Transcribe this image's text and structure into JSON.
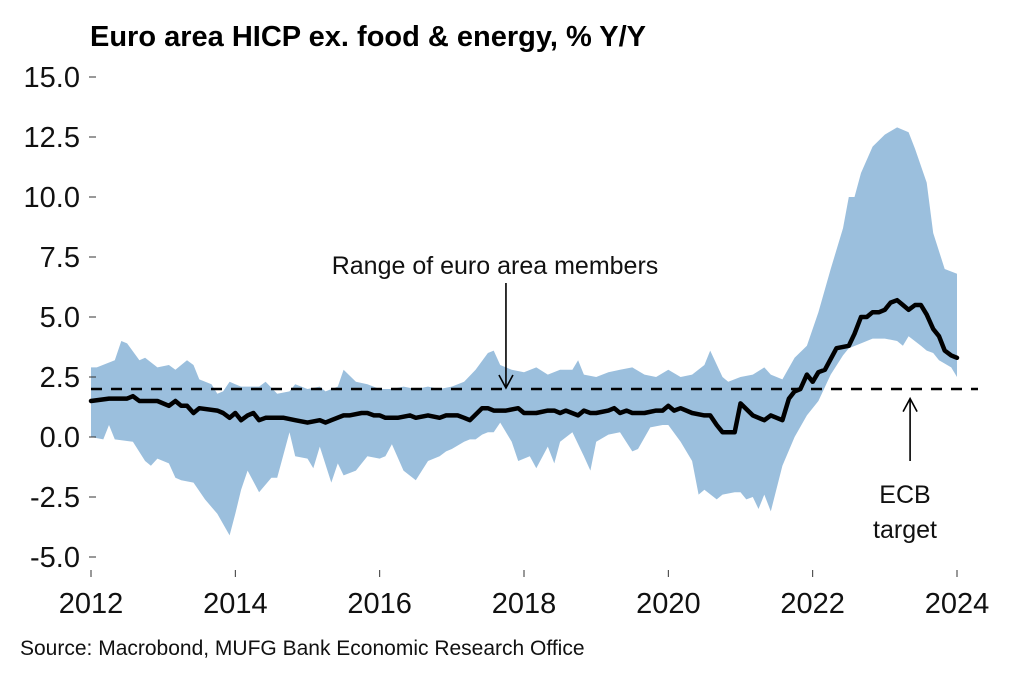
{
  "chart_data": {
    "type": "area",
    "title": "Euro area HICP ex. food & energy, % Y/Y",
    "xlabel": "",
    "ylabel": "",
    "source": "Source: Macrobond, MUFG Bank Economic Research Office",
    "xlim": [
      2012,
      2024
    ],
    "ylim": [
      -5.0,
      15.0
    ],
    "x_ticks": [
      2012,
      2014,
      2016,
      2018,
      2020,
      2022,
      2024
    ],
    "x_tick_labels": [
      "2012",
      "2014",
      "2016",
      "2018",
      "2020",
      "2022",
      "2024"
    ],
    "y_ticks": [
      15.0,
      12.5,
      10.0,
      7.5,
      5.0,
      2.5,
      0.0,
      -2.5,
      -5.0
    ],
    "y_tick_labels": [
      "15.0",
      "12.5",
      "10.0",
      "7.5",
      "5.0",
      "2.5",
      "0.0",
      "-2.5",
      "-5.0"
    ],
    "grid": false,
    "legend": "none",
    "colors": {
      "band": "#9bbfdd",
      "line": "#000000",
      "target": "#000000"
    },
    "reference_line": {
      "name": "ECB target",
      "value": 2.0,
      "style": "dashed"
    },
    "annotations": [
      {
        "text": "Range of euro area members",
        "arrow_to_x": 2017.75,
        "arrow_to_y": 2.0
      },
      {
        "text_lines": [
          "ECB",
          "target"
        ],
        "arrow_to_x": 2023.35,
        "arrow_to_y": 1.6
      }
    ],
    "series": [
      {
        "name": "Euro area HICP ex. food & energy",
        "type": "line",
        "x": [
          2012.0,
          2012.25,
          2012.5,
          2012.58,
          2012.67,
          2012.92,
          2013.08,
          2013.17,
          2013.25,
          2013.33,
          2013.42,
          2013.5,
          2013.75,
          2013.83,
          2013.92,
          2014.0,
          2014.08,
          2014.17,
          2014.25,
          2014.33,
          2014.42,
          2014.5,
          2014.67,
          2014.83,
          2015.0,
          2015.17,
          2015.25,
          2015.33,
          2015.5,
          2015.58,
          2015.75,
          2015.83,
          2015.92,
          2016.0,
          2016.08,
          2016.25,
          2016.42,
          2016.5,
          2016.67,
          2016.83,
          2016.92,
          2017.08,
          2017.17,
          2017.25,
          2017.42,
          2017.5,
          2017.58,
          2017.75,
          2017.92,
          2018.0,
          2018.17,
          2018.33,
          2018.42,
          2018.5,
          2018.58,
          2018.75,
          2018.83,
          2018.92,
          2019.0,
          2019.17,
          2019.25,
          2019.33,
          2019.42,
          2019.5,
          2019.58,
          2019.67,
          2019.83,
          2019.92,
          2020.0,
          2020.08,
          2020.17,
          2020.33,
          2020.5,
          2020.58,
          2020.67,
          2020.75,
          2020.92,
          2021.0,
          2021.17,
          2021.33,
          2021.42,
          2021.5,
          2021.58,
          2021.67,
          2021.75,
          2021.83,
          2021.92,
          2022.0,
          2022.08,
          2022.17,
          2022.33,
          2022.5,
          2022.58,
          2022.67,
          2022.75,
          2022.83,
          2022.92,
          2023.0,
          2023.08,
          2023.17,
          2023.25,
          2023.33,
          2023.42,
          2023.5,
          2023.58,
          2023.67,
          2023.75,
          2023.83,
          2023.92,
          2024.0
        ],
        "values": [
          1.5,
          1.6,
          1.6,
          1.7,
          1.5,
          1.5,
          1.3,
          1.5,
          1.3,
          1.3,
          1.0,
          1.2,
          1.1,
          1.0,
          0.8,
          1.0,
          0.7,
          0.9,
          1.0,
          0.7,
          0.8,
          0.8,
          0.8,
          0.7,
          0.6,
          0.7,
          0.6,
          0.7,
          0.9,
          0.9,
          1.0,
          1.0,
          0.9,
          0.9,
          0.8,
          0.8,
          0.9,
          0.8,
          0.9,
          0.8,
          0.9,
          0.9,
          0.8,
          0.7,
          1.2,
          1.2,
          1.1,
          1.1,
          1.2,
          1.0,
          1.0,
          1.1,
          1.1,
          1.0,
          1.1,
          0.9,
          1.1,
          1.0,
          1.0,
          1.1,
          1.2,
          1.0,
          1.1,
          1.0,
          1.0,
          1.0,
          1.1,
          1.1,
          1.3,
          1.1,
          1.2,
          1.0,
          0.9,
          0.9,
          0.5,
          0.2,
          0.2,
          1.4,
          0.9,
          0.7,
          0.9,
          0.8,
          0.7,
          1.6,
          1.9,
          2.0,
          2.6,
          2.3,
          2.7,
          2.8,
          3.7,
          3.8,
          4.3,
          5.0,
          5.0,
          5.2,
          5.2,
          5.3,
          5.6,
          5.7,
          5.5,
          5.3,
          5.5,
          5.5,
          5.1,
          4.5,
          4.2,
          3.6,
          3.4,
          3.3
        ]
      },
      {
        "name": "Range of euro area members (max)",
        "type": "band_upper",
        "x": [
          2012.0,
          2012.08,
          2012.33,
          2012.42,
          2012.5,
          2012.67,
          2012.75,
          2012.92,
          2013.08,
          2013.17,
          2013.33,
          2013.42,
          2013.5,
          2013.67,
          2013.75,
          2013.83,
          2013.92,
          2014.0,
          2014.08,
          2014.17,
          2014.33,
          2014.42,
          2014.58,
          2014.75,
          2014.83,
          2015.0,
          2015.17,
          2015.25,
          2015.42,
          2015.5,
          2015.67,
          2015.83,
          2016.0,
          2016.17,
          2016.33,
          2016.5,
          2016.67,
          2016.83,
          2017.0,
          2017.17,
          2017.33,
          2017.5,
          2017.58,
          2017.67,
          2017.83,
          2018.0,
          2018.17,
          2018.33,
          2018.5,
          2018.67,
          2018.75,
          2018.83,
          2019.0,
          2019.17,
          2019.33,
          2019.5,
          2019.67,
          2019.83,
          2020.0,
          2020.17,
          2020.33,
          2020.5,
          2020.58,
          2020.75,
          2020.83,
          2021.0,
          2021.17,
          2021.33,
          2021.42,
          2021.58,
          2021.75,
          2021.92,
          2022.08,
          2022.25,
          2022.42,
          2022.5,
          2022.58,
          2022.67,
          2022.83,
          2023.0,
          2023.17,
          2023.33,
          2023.42,
          2023.58,
          2023.67,
          2023.83,
          2024.0,
          2024.0
        ],
        "values": [
          2.9,
          2.9,
          3.2,
          4.0,
          3.9,
          3.2,
          3.3,
          2.9,
          3.0,
          2.8,
          3.2,
          3.0,
          2.4,
          2.2,
          1.8,
          1.9,
          2.3,
          2.2,
          2.1,
          2.1,
          2.1,
          2.3,
          1.8,
          1.9,
          2.2,
          2.0,
          2.1,
          1.9,
          2.1,
          2.8,
          2.3,
          2.2,
          2.0,
          2.0,
          2.1,
          2.0,
          2.1,
          2.0,
          2.1,
          2.3,
          2.8,
          3.5,
          3.6,
          3.0,
          2.8,
          2.7,
          2.9,
          2.6,
          2.8,
          2.8,
          3.2,
          2.6,
          2.5,
          2.7,
          2.8,
          2.9,
          2.6,
          2.5,
          2.8,
          2.5,
          2.6,
          3.0,
          3.6,
          2.5,
          2.3,
          2.5,
          2.6,
          2.9,
          2.6,
          2.4,
          3.3,
          3.8,
          5.2,
          7.0,
          8.7,
          10.0,
          10.0,
          11.0,
          12.1,
          12.6,
          12.9,
          12.7,
          12.0,
          10.6,
          8.5,
          7.0,
          6.8,
          5.2
        ]
      },
      {
        "name": "Range of euro area members (min)",
        "type": "band_lower",
        "x": [
          2012.0,
          2012.17,
          2012.25,
          2012.33,
          2012.58,
          2012.75,
          2012.83,
          2012.92,
          2013.08,
          2013.17,
          2013.25,
          2013.42,
          2013.58,
          2013.75,
          2013.92,
          2014.0,
          2014.08,
          2014.17,
          2014.33,
          2014.5,
          2014.58,
          2014.75,
          2014.83,
          2015.0,
          2015.08,
          2015.17,
          2015.33,
          2015.42,
          2015.5,
          2015.67,
          2015.83,
          2016.0,
          2016.08,
          2016.17,
          2016.33,
          2016.5,
          2016.67,
          2016.83,
          2016.92,
          2017.0,
          2017.17,
          2017.25,
          2017.33,
          2017.42,
          2017.5,
          2017.58,
          2017.67,
          2017.83,
          2017.92,
          2018.08,
          2018.17,
          2018.33,
          2018.42,
          2018.5,
          2018.67,
          2018.83,
          2018.92,
          2019.0,
          2019.17,
          2019.33,
          2019.5,
          2019.58,
          2019.75,
          2019.92,
          2020.0,
          2020.17,
          2020.33,
          2020.42,
          2020.5,
          2020.67,
          2020.75,
          2020.92,
          2021.0,
          2021.08,
          2021.17,
          2021.25,
          2021.33,
          2021.42,
          2021.58,
          2021.75,
          2021.92,
          2022.08,
          2022.25,
          2022.42,
          2022.5,
          2022.67,
          2022.83,
          2023.0,
          2023.17,
          2023.25,
          2023.33,
          2023.5,
          2023.58,
          2023.67,
          2023.75,
          2023.92,
          2024.0
        ],
        "values": [
          0.0,
          -0.1,
          0.5,
          -0.1,
          -0.2,
          -1.0,
          -1.2,
          -0.9,
          -1.1,
          -1.7,
          -1.8,
          -1.9,
          -2.6,
          -3.2,
          -4.1,
          -3.2,
          -2.2,
          -1.4,
          -2.3,
          -1.7,
          -1.7,
          0.2,
          -0.8,
          -0.9,
          -1.3,
          -0.4,
          -1.9,
          -1.1,
          -1.6,
          -1.4,
          -0.8,
          -0.9,
          -0.8,
          -0.3,
          -1.4,
          -1.8,
          -1.0,
          -0.8,
          -0.6,
          -0.5,
          -0.2,
          -0.1,
          -0.1,
          0.1,
          0.2,
          0.2,
          0.6,
          -0.2,
          -1.0,
          -0.8,
          -1.3,
          -0.4,
          -1.1,
          -0.2,
          0.2,
          -0.8,
          -1.4,
          -0.2,
          0.1,
          0.2,
          -0.6,
          -0.5,
          0.4,
          0.5,
          0.5,
          -0.2,
          -1.0,
          -2.4,
          -2.2,
          -2.6,
          -2.4,
          -2.3,
          -2.3,
          -2.6,
          -2.5,
          -3.0,
          -2.4,
          -3.1,
          -1.2,
          0.0,
          0.9,
          1.5,
          2.6,
          3.4,
          3.7,
          3.9,
          4.1,
          4.1,
          4.0,
          3.8,
          4.2,
          3.8,
          3.6,
          3.5,
          3.2,
          2.9,
          2.5
        ]
      }
    ]
  }
}
